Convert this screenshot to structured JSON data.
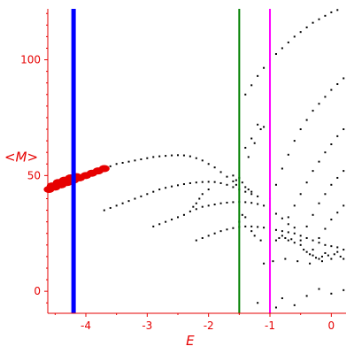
{
  "chart_data": {
    "type": "scatter",
    "title": "",
    "xlabel": "E",
    "ylabel": "<M>",
    "xlim": [
      -4.62,
      0.24
    ],
    "ylim": [
      -9.5,
      122
    ],
    "x_ticks": [
      -4,
      -3,
      -2,
      -1,
      0
    ],
    "x_tick_labels": [
      "-4",
      "-3",
      "-2",
      "-1",
      "0"
    ],
    "y_ticks": [
      0,
      50,
      100
    ],
    "y_tick_labels": [
      "0",
      "50",
      "100"
    ],
    "grid": false,
    "legend": "none",
    "axis_color": "#e60000",
    "vertical_lines": [
      {
        "x": -4.2,
        "color": "#0000ff"
      },
      {
        "x": -1.5,
        "color": "#008000"
      },
      {
        "x": -1.0,
        "color": "#ff00ff"
      }
    ],
    "series": [
      {
        "color": "#e60000",
        "marker": "dense-band",
        "values": [
          [
            -4.6,
            44
          ],
          [
            -4.55,
            45.5
          ],
          [
            -4.5,
            45
          ],
          [
            -4.45,
            47
          ],
          [
            -4.4,
            46
          ],
          [
            -4.35,
            48
          ],
          [
            -4.3,
            47
          ],
          [
            -4.25,
            49
          ],
          [
            -4.2,
            48
          ],
          [
            -4.15,
            49.5
          ],
          [
            -4.1,
            49
          ],
          [
            -4.0,
            50
          ],
          [
            -3.9,
            51
          ],
          [
            -3.8,
            52
          ],
          [
            -3.7,
            53
          ]
        ]
      },
      {
        "color": "#000000",
        "marker": "dot",
        "values": [
          [
            -3.6,
            54
          ],
          [
            -3.5,
            55
          ],
          [
            -3.4,
            55.5
          ],
          [
            -3.3,
            56
          ],
          [
            -3.2,
            56.5
          ],
          [
            -3.1,
            57
          ],
          [
            -3.0,
            57.5
          ],
          [
            -2.9,
            58
          ],
          [
            -2.8,
            58.3
          ],
          [
            -2.7,
            58.5
          ],
          [
            -2.6,
            58.7
          ],
          [
            -2.5,
            58.8
          ],
          [
            -2.4,
            58.7
          ],
          [
            -2.3,
            58.3
          ],
          [
            -2.2,
            57.5
          ],
          [
            -2.1,
            56.5
          ],
          [
            -2.0,
            55
          ],
          [
            -1.9,
            53.5
          ],
          [
            -1.8,
            51.5
          ],
          [
            -1.7,
            49.5
          ],
          [
            -1.6,
            47.5
          ],
          [
            -1.55,
            46
          ],
          [
            -3.7,
            35
          ],
          [
            -3.6,
            36
          ],
          [
            -3.5,
            37
          ],
          [
            -3.4,
            38
          ],
          [
            -3.3,
            39
          ],
          [
            -3.2,
            40
          ],
          [
            -3.1,
            41
          ],
          [
            -3.0,
            42
          ],
          [
            -2.9,
            43
          ],
          [
            -2.8,
            44
          ],
          [
            -2.7,
            44.7
          ],
          [
            -2.6,
            45.3
          ],
          [
            -2.5,
            45.8
          ],
          [
            -2.4,
            46.3
          ],
          [
            -2.3,
            46.7
          ],
          [
            -2.2,
            47
          ],
          [
            -2.1,
            47.2
          ],
          [
            -2.0,
            47.3
          ],
          [
            -1.9,
            47.2
          ],
          [
            -1.8,
            46.7
          ],
          [
            -1.7,
            46
          ],
          [
            -1.6,
            45
          ],
          [
            -1.5,
            44
          ],
          [
            -1.4,
            43
          ],
          [
            -1.3,
            42
          ],
          [
            -1.2,
            41
          ],
          [
            -2.0,
            44
          ],
          [
            -2.1,
            42
          ],
          [
            -2.15,
            40
          ],
          [
            -2.2,
            38
          ],
          [
            -2.25,
            36.5
          ],
          [
            -2.9,
            28
          ],
          [
            -2.8,
            29
          ],
          [
            -2.7,
            30
          ],
          [
            -2.6,
            31
          ],
          [
            -2.5,
            32
          ],
          [
            -2.4,
            33
          ],
          [
            -2.3,
            34.5
          ],
          [
            -2.2,
            35.5
          ],
          [
            -2.1,
            36.5
          ],
          [
            -2.0,
            37
          ],
          [
            -1.9,
            37.5
          ],
          [
            -1.8,
            38
          ],
          [
            -1.7,
            38.3
          ],
          [
            -1.6,
            38.5
          ],
          [
            -1.5,
            38.6
          ],
          [
            -1.4,
            38.5
          ],
          [
            -1.3,
            38.2
          ],
          [
            -1.2,
            37.7
          ],
          [
            -1.1,
            37
          ],
          [
            -1.0,
            35.5
          ],
          [
            -0.9,
            33.5
          ],
          [
            -0.8,
            31.5
          ],
          [
            -0.7,
            29
          ],
          [
            -0.6,
            27.5
          ],
          [
            -2.2,
            22
          ],
          [
            -2.1,
            23
          ],
          [
            -2.0,
            24
          ],
          [
            -1.9,
            25
          ],
          [
            -1.8,
            26
          ],
          [
            -1.7,
            26.7
          ],
          [
            -1.6,
            27.3
          ],
          [
            -1.5,
            27.8
          ],
          [
            -1.4,
            28
          ],
          [
            -1.3,
            28
          ],
          [
            -1.2,
            27.8
          ],
          [
            -1.1,
            27.5
          ],
          [
            -1.0,
            27
          ],
          [
            -0.9,
            26.5
          ],
          [
            -0.8,
            26
          ],
          [
            -0.7,
            25.5
          ],
          [
            -0.6,
            25
          ],
          [
            -0.5,
            24
          ],
          [
            -0.4,
            23
          ],
          [
            -0.3,
            22
          ],
          [
            -0.2,
            21
          ],
          [
            -0.1,
            20
          ],
          [
            0.0,
            19.5
          ],
          [
            0.1,
            19
          ],
          [
            0.2,
            18
          ],
          [
            -1.4,
            85
          ],
          [
            -1.3,
            89
          ],
          [
            -1.2,
            93
          ],
          [
            -1.1,
            96.5
          ],
          [
            -1.0,
            100
          ],
          [
            -0.9,
            102.5
          ],
          [
            -0.8,
            105
          ],
          [
            -0.7,
            107.5
          ],
          [
            -0.6,
            110
          ],
          [
            -0.5,
            112
          ],
          [
            -0.4,
            114
          ],
          [
            -0.3,
            116
          ],
          [
            -0.2,
            117.5
          ],
          [
            -0.1,
            119
          ],
          [
            0.0,
            120.5
          ],
          [
            0.1,
            121.5
          ],
          [
            -1.0,
            40
          ],
          [
            -0.9,
            46
          ],
          [
            -0.8,
            53
          ],
          [
            -0.7,
            59
          ],
          [
            -0.6,
            65
          ],
          [
            -0.5,
            70
          ],
          [
            -0.4,
            74
          ],
          [
            -0.3,
            78
          ],
          [
            -0.2,
            81
          ],
          [
            -0.1,
            84
          ],
          [
            0.0,
            87
          ],
          [
            0.1,
            89.5
          ],
          [
            0.2,
            92
          ],
          [
            -0.7,
            32
          ],
          [
            -0.6,
            37
          ],
          [
            -0.5,
            42
          ],
          [
            -0.4,
            47
          ],
          [
            -0.3,
            52
          ],
          [
            -0.2,
            56
          ],
          [
            -0.1,
            60
          ],
          [
            0.0,
            63.5
          ],
          [
            0.1,
            67
          ],
          [
            0.2,
            70
          ],
          [
            -0.5,
            22
          ],
          [
            -0.4,
            28
          ],
          [
            -0.3,
            33
          ],
          [
            -0.2,
            38
          ],
          [
            -0.1,
            42
          ],
          [
            0.0,
            46
          ],
          [
            0.1,
            49
          ],
          [
            0.2,
            52
          ],
          [
            -0.3,
            18
          ],
          [
            -0.2,
            23
          ],
          [
            -0.1,
            27
          ],
          [
            0.0,
            31
          ],
          [
            0.1,
            34
          ],
          [
            0.2,
            37
          ],
          [
            -0.8,
            24
          ],
          [
            -0.7,
            22
          ],
          [
            -0.6,
            21
          ],
          [
            -0.5,
            20
          ],
          [
            -0.45,
            18
          ],
          [
            -0.4,
            17
          ],
          [
            -0.35,
            16
          ],
          [
            -0.3,
            15.5
          ],
          [
            -0.25,
            14.5
          ],
          [
            -0.2,
            14
          ],
          [
            -0.15,
            15
          ],
          [
            -0.1,
            16.5
          ],
          [
            -0.05,
            15.5
          ],
          [
            0.0,
            14
          ],
          [
            0.05,
            16
          ],
          [
            0.1,
            17
          ],
          [
            0.15,
            15
          ],
          [
            0.2,
            14
          ],
          [
            -0.9,
            22
          ],
          [
            -0.85,
            23
          ],
          [
            -0.75,
            23
          ],
          [
            -0.65,
            22.5
          ],
          [
            -1.1,
            12
          ],
          [
            -0.95,
            13
          ],
          [
            -0.75,
            14
          ],
          [
            -0.55,
            13
          ],
          [
            -0.35,
            12
          ],
          [
            -0.15,
            13
          ],
          [
            -1.2,
            72
          ],
          [
            -1.15,
            70
          ],
          [
            -1.1,
            71
          ],
          [
            -1.4,
            62
          ],
          [
            -1.35,
            58
          ],
          [
            -1.3,
            66
          ],
          [
            -1.25,
            64
          ],
          [
            -1.6,
            50
          ],
          [
            -1.55,
            48
          ],
          [
            -1.5,
            49
          ],
          [
            -1.45,
            47
          ],
          [
            -1.4,
            45
          ],
          [
            -1.35,
            44
          ],
          [
            -1.3,
            43
          ],
          [
            -1.45,
            33
          ],
          [
            -1.4,
            32
          ],
          [
            -1.5,
            30
          ],
          [
            -1.3,
            26
          ],
          [
            -1.25,
            24
          ],
          [
            -1.15,
            22
          ],
          [
            -1.2,
            -5
          ],
          [
            -0.9,
            -7
          ],
          [
            -0.6,
            -6
          ],
          [
            -0.8,
            -3
          ],
          [
            -0.4,
            -2
          ],
          [
            -0.2,
            1
          ],
          [
            0.0,
            -1
          ],
          [
            0.2,
            0.5
          ]
        ]
      }
    ]
  }
}
